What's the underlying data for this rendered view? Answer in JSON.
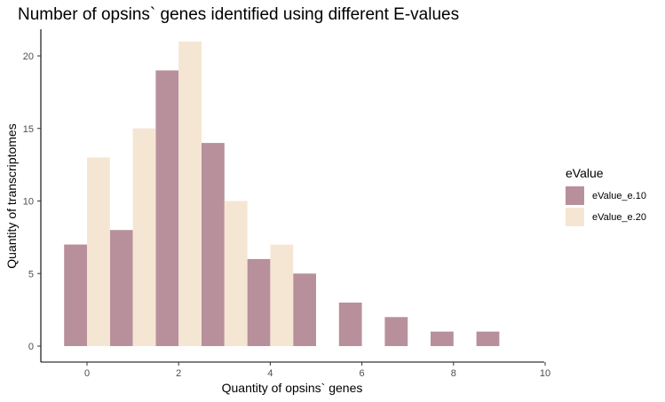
{
  "chart_data": {
    "type": "bar",
    "title": "Number of opsins` genes identified using different E-values",
    "xlabel": "Quantity of opsins` genes",
    "ylabel": "Quantity of transcriptomes",
    "xlim": [
      -1,
      10
    ],
    "ylim": [
      0,
      22
    ],
    "xticks": [
      0,
      2,
      4,
      6,
      8,
      10
    ],
    "yticks": [
      0,
      5,
      10,
      15,
      20
    ],
    "x": [
      0,
      1,
      2,
      3,
      4,
      5,
      6,
      7,
      8,
      9
    ],
    "series": [
      {
        "name": "eValue_e.10",
        "color": "#b8909c",
        "values": [
          7,
          8,
          19,
          14,
          6,
          5,
          3,
          2,
          1,
          1
        ]
      },
      {
        "name": "eValue_e.20",
        "color": "#f5e6d4",
        "values": [
          13,
          15,
          21,
          10,
          7,
          null,
          null,
          null,
          null,
          null
        ]
      }
    ],
    "legend": {
      "title": "eValue",
      "position": "right"
    },
    "grid": false
  }
}
